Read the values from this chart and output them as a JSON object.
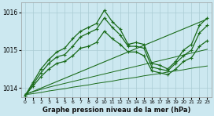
{
  "bg_color": "#cce8f0",
  "grid_color": "#aaccd4",
  "line_color": "#1a6b1a",
  "xlabel": "Graphe pression niveau de la mer (hPa)",
  "ylim": [
    1013.75,
    1016.25
  ],
  "xlim": [
    -0.5,
    23.5
  ],
  "yticks": [
    1014,
    1015,
    1016
  ],
  "xticks": [
    0,
    1,
    2,
    3,
    4,
    5,
    6,
    7,
    8,
    9,
    10,
    11,
    12,
    13,
    14,
    15,
    16,
    17,
    18,
    19,
    20,
    21,
    22,
    23
  ],
  "series": [
    {
      "x": [
        0,
        1,
        2,
        3,
        4,
        5,
        6,
        7,
        8,
        9,
        10,
        11,
        12,
        13,
        14,
        15,
        16,
        17,
        18,
        19,
        20,
        21,
        22,
        23
      ],
      "y": [
        1013.8,
        1014.15,
        1014.5,
        1014.75,
        1014.95,
        1015.05,
        1015.3,
        1015.5,
        1015.6,
        1015.7,
        1016.05,
        1015.75,
        1015.55,
        1015.15,
        1015.2,
        1015.15,
        1014.65,
        1014.6,
        1014.5,
        1014.7,
        1015.0,
        1015.15,
        1015.65,
        1015.85
      ],
      "marker": "+",
      "lw": 0.9
    },
    {
      "x": [
        0,
        1,
        2,
        3,
        4,
        5,
        6,
        7,
        8,
        9,
        10,
        11,
        12,
        13,
        14,
        15,
        16,
        17,
        18,
        19,
        20,
        21,
        22,
        23
      ],
      "y": [
        1013.8,
        1014.1,
        1014.4,
        1014.65,
        1014.82,
        1014.88,
        1015.1,
        1015.35,
        1015.45,
        1015.55,
        1015.85,
        1015.6,
        1015.4,
        1015.1,
        1015.1,
        1015.05,
        1014.55,
        1014.5,
        1014.45,
        1014.65,
        1014.85,
        1015.0,
        1015.45,
        1015.65
      ],
      "marker": "+",
      "lw": 0.9
    },
    {
      "x": [
        0,
        1,
        2,
        3,
        4,
        5,
        6,
        7,
        8,
        9,
        10,
        11,
        12,
        13,
        14,
        15,
        16,
        17,
        18,
        19,
        20,
        21,
        22,
        23
      ],
      "y": [
        1013.8,
        1014.05,
        1014.3,
        1014.5,
        1014.65,
        1014.7,
        1014.85,
        1015.05,
        1015.1,
        1015.2,
        1015.5,
        1015.3,
        1015.15,
        1014.95,
        1014.95,
        1014.85,
        1014.45,
        1014.4,
        1014.35,
        1014.5,
        1014.7,
        1014.8,
        1015.1,
        1015.25
      ],
      "marker": "+",
      "lw": 0.9
    },
    {
      "x": [
        0,
        1,
        2,
        3,
        4,
        5,
        6,
        7,
        8,
        9,
        10,
        11,
        12,
        13,
        14,
        15,
        16,
        17,
        18,
        19,
        20,
        21,
        22,
        23
      ],
      "y": [
        1013.82,
        1013.85,
        1013.88,
        1013.92,
        1013.95,
        1013.98,
        1014.02,
        1014.05,
        1014.08,
        1014.12,
        1014.15,
        1014.18,
        1014.22,
        1014.25,
        1014.28,
        1014.32,
        1014.35,
        1014.38,
        1014.42,
        1014.45,
        1014.48,
        1014.52,
        1014.55,
        1014.58
      ],
      "marker": null,
      "lw": 0.7
    },
    {
      "x": [
        0,
        1,
        2,
        3,
        4,
        5,
        6,
        7,
        8,
        9,
        10,
        11,
        12,
        13,
        14,
        15,
        16,
        17,
        18,
        19,
        20,
        21,
        22,
        23
      ],
      "y": [
        1013.84,
        1013.9,
        1013.96,
        1014.02,
        1014.07,
        1014.12,
        1014.17,
        1014.22,
        1014.27,
        1014.32,
        1014.37,
        1014.42,
        1014.47,
        1014.52,
        1014.57,
        1014.62,
        1014.67,
        1014.72,
        1014.77,
        1014.82,
        1014.87,
        1014.92,
        1014.97,
        1015.02
      ],
      "marker": null,
      "lw": 0.7
    },
    {
      "x": [
        0,
        23
      ],
      "y": [
        1013.82,
        1015.82
      ],
      "marker": null,
      "lw": 0.8
    }
  ]
}
